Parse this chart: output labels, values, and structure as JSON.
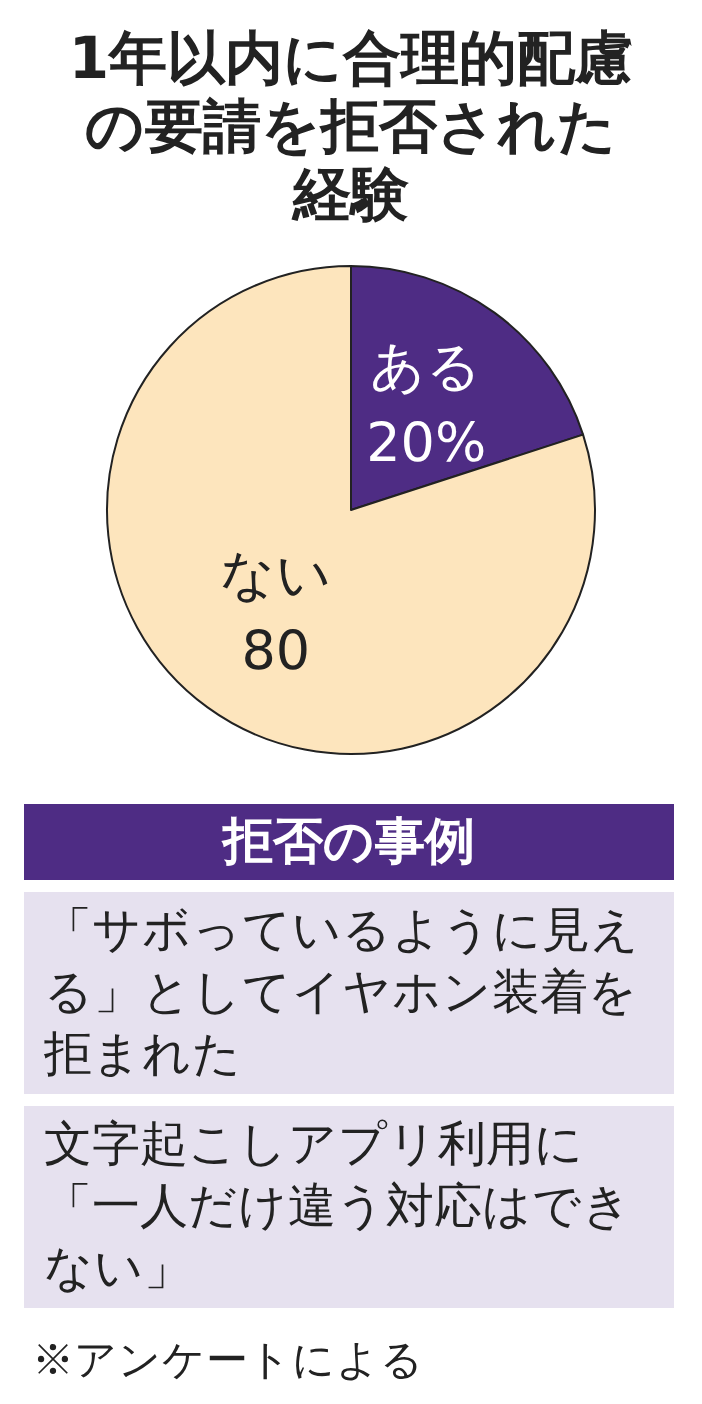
{
  "chart_data": {
    "type": "pie",
    "title": "1年以内に合理的配慮の要請を拒否された経験",
    "categories": [
      "ある",
      "ない"
    ],
    "values": [
      20,
      80
    ],
    "value_labels": [
      "20%",
      "80"
    ],
    "colors": [
      "#4e2c84",
      "#fde5bd"
    ],
    "annotations": [
      "拒否の事例",
      "「サボっているように見える」としてイヤホン装着を拒まれた",
      "文字起こしアプリ利用に「一人だけ違う対応はできない」",
      "※アンケートによる"
    ]
  }
}
